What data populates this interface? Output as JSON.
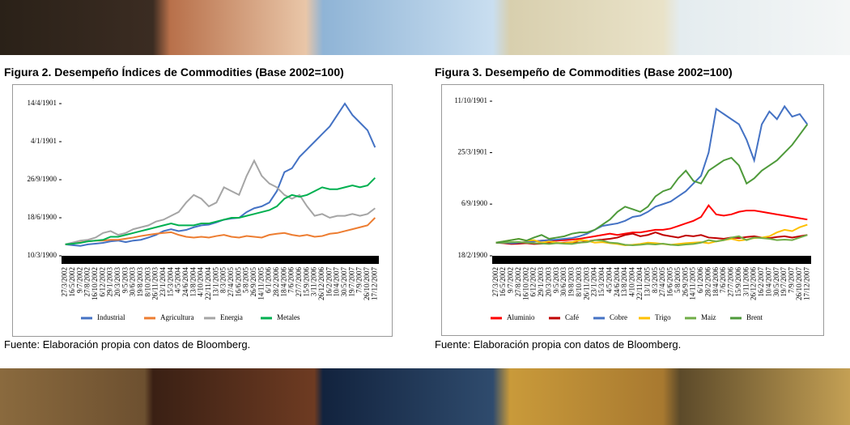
{
  "chart_data": [
    {
      "type": "line",
      "title": "Figura 2. Desempeño Índices de Commodities (Base 2002=100)",
      "source": "Fuente: Elaboración propia con datos de Bloomberg.",
      "categories": [
        "27/3/2002",
        "16/5/2002",
        "9/7/2002",
        "27/8/2002",
        "16/10/2002",
        "6/12/2002",
        "29/1/2003",
        "20/3/2003",
        "9/5/2003",
        "30/6/2003",
        "19/8/2003",
        "8/10/2003",
        "26/11/2003",
        "23/1/2004",
        "15/3/2004",
        "4/5/2004",
        "24/6/2004",
        "13/8/2004",
        "4/10/2004",
        "22/11/2004",
        "13/1/2005",
        "8/3/2005",
        "27/4/2005",
        "16/6/2005",
        "5/8/2005",
        "26/9/2005",
        "14/11/2005",
        "6/1/2006",
        "28/2/2006",
        "18/4/2006",
        "7/6/2006",
        "27/7/2006",
        "15/9/2006",
        "3/11/2006",
        "26/12/2006",
        "16/2/2007",
        "10/4/2007",
        "30/5/2007",
        "19/7/2007",
        "7/9/2007",
        "26/10/2007",
        "17/12/2007"
      ],
      "ylim": [
        70,
        470
      ],
      "yticks": [
        {
          "value": 70,
          "label": "10/3/1900"
        },
        {
          "value": 170,
          "label": "18/6/1900"
        },
        {
          "value": 270,
          "label": "26/9/1900"
        },
        {
          "value": 370,
          "label": "4/1/1901"
        },
        {
          "value": 470,
          "label": "14/4/1901"
        }
      ],
      "series": [
        {
          "name": "Industrial",
          "color": "#4472c4",
          "values": [
            100,
            98,
            96,
            100,
            102,
            104,
            108,
            110,
            106,
            110,
            112,
            118,
            125,
            135,
            140,
            135,
            138,
            145,
            150,
            152,
            158,
            165,
            168,
            170,
            185,
            195,
            200,
            210,
            240,
            290,
            300,
            330,
            350,
            370,
            390,
            410,
            440,
            470,
            440,
            420,
            400,
            355
          ]
        },
        {
          "name": "Agricultura",
          "color": "#ed7d31",
          "values": [
            100,
            102,
            105,
            108,
            110,
            110,
            112,
            112,
            115,
            118,
            122,
            125,
            128,
            130,
            132,
            125,
            120,
            118,
            120,
            118,
            122,
            125,
            120,
            118,
            122,
            120,
            118,
            125,
            128,
            130,
            125,
            122,
            125,
            120,
            122,
            128,
            130,
            135,
            140,
            145,
            150,
            170
          ]
        },
        {
          "name": "Energia",
          "color": "#a5a5a5",
          "values": [
            100,
            105,
            110,
            112,
            118,
            130,
            135,
            125,
            130,
            140,
            145,
            150,
            160,
            165,
            175,
            185,
            210,
            230,
            220,
            200,
            210,
            250,
            240,
            230,
            280,
            320,
            280,
            260,
            250,
            230,
            220,
            230,
            200,
            175,
            180,
            170,
            175,
            175,
            180,
            175,
            180,
            195
          ]
        },
        {
          "name": "Metales",
          "color": "#00b050",
          "values": [
            100,
            102,
            104,
            108,
            110,
            112,
            120,
            120,
            125,
            130,
            135,
            140,
            145,
            150,
            155,
            150,
            150,
            150,
            155,
            155,
            160,
            165,
            170,
            170,
            175,
            180,
            185,
            190,
            200,
            220,
            230,
            225,
            230,
            240,
            250,
            245,
            245,
            250,
            255,
            250,
            255,
            275
          ]
        }
      ]
    },
    {
      "type": "line",
      "title": "Figura 3. Desempeño de Commodities (Base 2002=100)",
      "source": "Fuente: Elaboración propia con datos de Bloomberg.",
      "categories": [
        "27/3/2002",
        "16/5/2002",
        "9/7/2002",
        "27/8/2002",
        "16/10/2002",
        "6/12/2002",
        "29/1/2003",
        "20/3/2003",
        "9/5/2003",
        "30/6/2003",
        "19/8/2003",
        "8/10/2003",
        "26/11/2003",
        "23/1/2004",
        "15/3/2004",
        "4/5/2004",
        "24/6/2004",
        "13/8/2004",
        "4/10/2004",
        "22/11/2004",
        "13/1/2005",
        "8/3/2005",
        "27/4/2005",
        "16/6/2005",
        "5/8/2005",
        "26/9/2005",
        "14/11/2005",
        "6/1/2006",
        "28/2/2006",
        "18/4/2006",
        "7/6/2006",
        "27/7/2006",
        "15/9/2006",
        "3/11/2006",
        "26/12/2006",
        "16/2/2007",
        "10/4/2007",
        "30/5/2007",
        "19/7/2007",
        "7/9/2007",
        "26/10/2007",
        "17/12/2007"
      ],
      "ylim": [
        49,
        650
      ],
      "yticks": [
        {
          "value": 49,
          "label": "18/2/1900"
        },
        {
          "value": 250,
          "label": "6/9/1900"
        },
        {
          "value": 450,
          "label": "25/3/1901"
        },
        {
          "value": 650,
          "label": "11/10/1901"
        }
      ],
      "series": [
        {
          "name": "Aluminio",
          "color": "#ff0000",
          "values": [
            100,
            100,
            98,
            100,
            102,
            105,
            108,
            110,
            108,
            110,
            112,
            115,
            120,
            125,
            130,
            135,
            130,
            135,
            140,
            140,
            145,
            150,
            150,
            155,
            165,
            175,
            185,
            200,
            245,
            210,
            205,
            210,
            220,
            225,
            225,
            220,
            215,
            210,
            205,
            200,
            195,
            190
          ]
        },
        {
          "name": "Café",
          "color": "#c00000",
          "values": [
            100,
            98,
            95,
            96,
            98,
            95,
            96,
            100,
            98,
            100,
            102,
            100,
            105,
            110,
            112,
            115,
            120,
            130,
            135,
            125,
            130,
            140,
            130,
            125,
            120,
            128,
            125,
            130,
            120,
            118,
            115,
            120,
            118,
            122,
            125,
            120,
            118,
            122,
            125,
            120,
            125,
            130
          ]
        },
        {
          "name": "Cobre",
          "color": "#4472c4",
          "values": [
            100,
            100,
            98,
            100,
            102,
            105,
            108,
            110,
            112,
            115,
            118,
            125,
            135,
            150,
            165,
            170,
            175,
            185,
            200,
            205,
            220,
            240,
            250,
            260,
            280,
            300,
            330,
            360,
            450,
            620,
            600,
            580,
            560,
            500,
            420,
            560,
            610,
            580,
            630,
            590,
            600,
            560
          ]
        },
        {
          "name": "Trigo",
          "color": "#ffc000",
          "values": [
            100,
            105,
            110,
            115,
            108,
            110,
            100,
            105,
            100,
            98,
            102,
            110,
            108,
            100,
            102,
            98,
            95,
            90,
            92,
            95,
            100,
            98,
            95,
            92,
            95,
            98,
            100,
            102,
            98,
            105,
            110,
            115,
            108,
            112,
            118,
            120,
            125,
            140,
            150,
            145,
            160,
            170
          ]
        },
        {
          "name": "Maiz",
          "color": "#70ad47",
          "values": [
            100,
            100,
            102,
            103,
            100,
            98,
            97,
            95,
            98,
            96,
            95,
            100,
            102,
            110,
            108,
            100,
            98,
            92,
            90,
            92,
            95,
            93,
            96,
            92,
            90,
            93,
            95,
            100,
            110,
            105,
            110,
            120,
            125,
            110,
            120,
            118,
            115,
            110,
            112,
            110,
            120,
            130
          ]
        },
        {
          "name": "Brent",
          "color": "#4e9a3a",
          "values": [
            100,
            105,
            110,
            115,
            108,
            120,
            130,
            115,
            120,
            125,
            135,
            140,
            140,
            150,
            170,
            190,
            220,
            240,
            230,
            220,
            240,
            280,
            300,
            310,
            350,
            380,
            340,
            330,
            380,
            400,
            420,
            430,
            400,
            330,
            350,
            380,
            400,
            420,
            450,
            480,
            520,
            560
          ]
        }
      ]
    }
  ]
}
